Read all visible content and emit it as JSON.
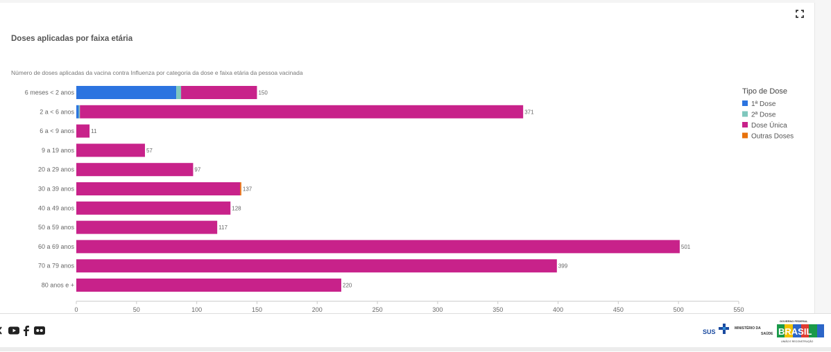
{
  "title": "Doses aplicadas por faixa etária",
  "subtitle": "Número de doses aplicadas da vacina contra Influenza por categoria da dose e faixa etária da pessoa vacinada",
  "icons": {
    "fullscreen": "fullscreen-icon",
    "social": [
      "x-icon",
      "youtube-icon",
      "facebook-icon",
      "flickr-icon"
    ]
  },
  "footer": {
    "sus": "SUS",
    "ministerio_line1": "MINISTÉRIO DA",
    "ministerio_line2": "SAÚDE",
    "gov_top": "GOVERNO FEDERAL",
    "gov_word": "BRASIL",
    "gov_bottom": "UNIÃO E RECONSTRUÇÃO"
  },
  "chart_data": {
    "type": "bar",
    "orientation": "horizontal",
    "stacked": true,
    "categories": [
      "6 meses < 2 anos",
      "2 a < 6 anos",
      "6 a < 9 anos",
      "9 a 19 anos",
      "20 a 29 anos",
      "30 a 39 anos",
      "40 a 49 anos",
      "50 a 59 anos",
      "60 a 69 anos",
      "70 a 79 anos",
      "80 anos e +"
    ],
    "series": [
      {
        "name": "1ª Dose",
        "color": "#2c74e0",
        "values": [
          83,
          2,
          0,
          0,
          0,
          0,
          0,
          0,
          0,
          0,
          0
        ]
      },
      {
        "name": "2ª Dose",
        "color": "#7fc7bd",
        "values": [
          4,
          1,
          0,
          0,
          0,
          0,
          0,
          0,
          0,
          0,
          0
        ]
      },
      {
        "name": "Dose Única",
        "color": "#c8228a",
        "values": [
          63,
          368,
          11,
          57,
          97,
          136,
          128,
          117,
          501,
          399,
          220
        ]
      },
      {
        "name": "Outras Doses",
        "color": "#e8720c",
        "values": [
          0,
          0,
          0,
          0,
          0,
          1,
          0,
          0,
          0,
          0,
          0
        ]
      }
    ],
    "totals": [
      150,
      371,
      11,
      57,
      97,
      137,
      128,
      117,
      501,
      399,
      220
    ],
    "legend_title": "Tipo de Dose",
    "legend_position": "right",
    "xlim": [
      0,
      550
    ],
    "xticks": [
      0,
      50,
      100,
      150,
      200,
      250,
      300,
      350,
      400,
      450,
      500,
      550
    ],
    "grid": false
  }
}
